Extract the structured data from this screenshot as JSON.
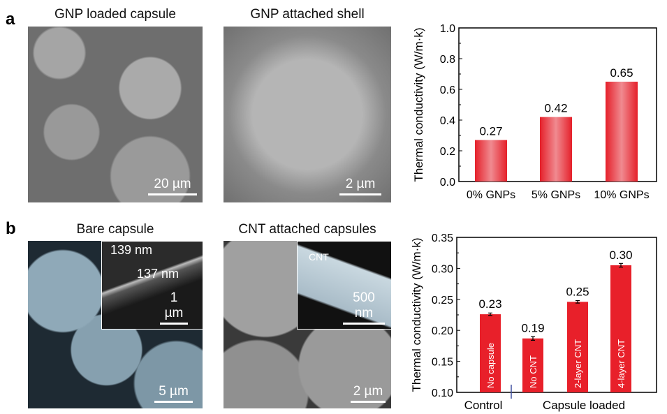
{
  "panels": {
    "a": {
      "label": "a",
      "img1": {
        "title": "GNP loaded capsule",
        "scale": "20 µm"
      },
      "img2": {
        "title": "GNP attached shell",
        "scale": "2 µm"
      }
    },
    "b": {
      "label": "b",
      "img1": {
        "title": "Bare capsule",
        "scale": "5 µm",
        "inset_scale": "1 µm",
        "ann1": "139 nm",
        "ann2": "137 nm"
      },
      "img2": {
        "title": "CNT attached capsules",
        "scale": "2 µm",
        "inset_scale": "500 nm",
        "ann": "CNT"
      }
    }
  },
  "chart_data": [
    {
      "type": "bar",
      "title": "",
      "xlabel": "",
      "ylabel": "Thermal conductivity (W/m·k)",
      "ylim": [
        0,
        1.0
      ],
      "yticks": [
        "0.0",
        "0.2",
        "0.4",
        "0.6",
        "0.8",
        "1.0"
      ],
      "categories": [
        "0% GNPs",
        "5% GNPs",
        "10% GNPs"
      ],
      "values": [
        0.27,
        0.42,
        0.65
      ],
      "data_labels": [
        "0.27",
        "0.42",
        "0.65"
      ],
      "color": "#e8323a"
    },
    {
      "type": "bar",
      "title": "",
      "xlabel": "",
      "ylabel": "Thermal conductivity (W/m·k)",
      "ylim": [
        0.1,
        0.35
      ],
      "yticks": [
        "0.10",
        "0.15",
        "0.20",
        "0.25",
        "0.30",
        "0.35"
      ],
      "categories": [
        "No capsule",
        "No CNT",
        "2-layer CNT",
        "4-layer CNT"
      ],
      "values": [
        0.226,
        0.187,
        0.246,
        0.305
      ],
      "errors": [
        0.002,
        0.003,
        0.002,
        0.003
      ],
      "data_labels": [
        "0.23",
        "0.19",
        "0.25",
        "0.30"
      ],
      "groups": [
        "Control",
        "Capsule loaded"
      ],
      "color": "#e8202a"
    }
  ]
}
